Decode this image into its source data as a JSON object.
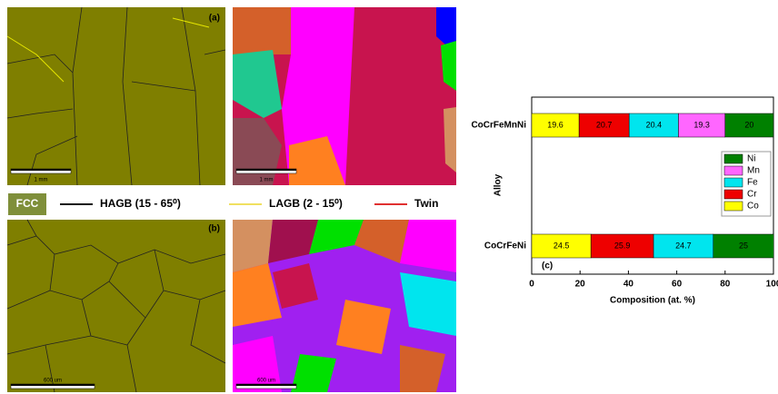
{
  "figure": {
    "panel_a": "(a)",
    "panel_b": "(b)",
    "scale_bars": [
      "1 mm",
      "1 mm",
      "600 um",
      "600 um"
    ],
    "legend": {
      "fcc": "FCC",
      "hagb": "HAGB (15 - 65⁰)",
      "lagb": "LAGB (2 - 15⁰)",
      "twin": "Twin"
    }
  },
  "chart_data": {
    "type": "stacked-barh",
    "panel": "(c)",
    "x_label": "Composition (at. %)",
    "y_label": "Alloy",
    "categories": [
      "CoCrFeMnNi",
      "CoCrFeNi"
    ],
    "series": [
      {
        "name": "Co",
        "color": "#ffff00",
        "values": [
          19.6,
          24.5
        ]
      },
      {
        "name": "Cr",
        "color": "#ee0000",
        "values": [
          20.7,
          25.9
        ]
      },
      {
        "name": "Fe",
        "color": "#00e5ee",
        "values": [
          20.4,
          24.7
        ]
      },
      {
        "name": "Mn",
        "color": "#ff66ff",
        "values": [
          19.3,
          null
        ]
      },
      {
        "name": "Ni",
        "color": "#008000",
        "values": [
          20,
          25
        ]
      }
    ],
    "xlim": [
      0,
      100
    ],
    "xticks": [
      0,
      20,
      40,
      60,
      80,
      100
    ]
  }
}
